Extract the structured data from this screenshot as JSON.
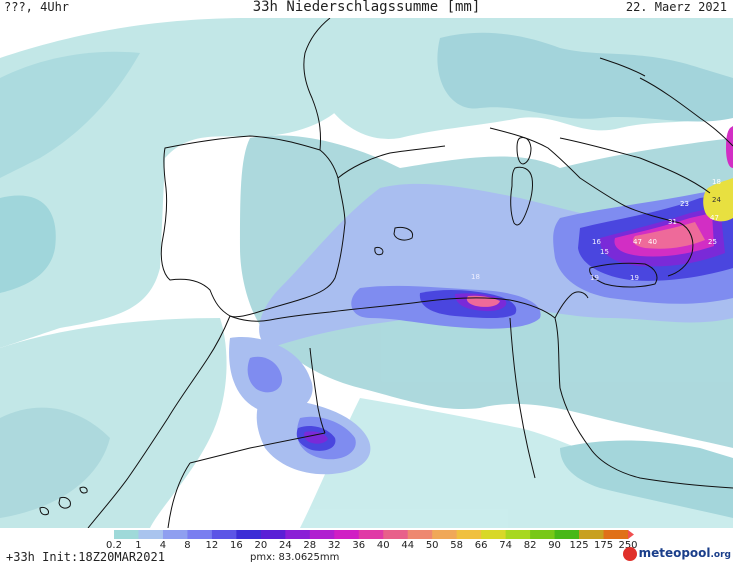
{
  "header": {
    "left": "???, 4Uhr",
    "title": "33h Niederschlagssumme [mm]",
    "date": "22. Maerz 2021"
  },
  "footer": {
    "forecast": "+33h Init:18Z20MAR2021",
    "pmx": "pmx: 83.0625mm",
    "logo": "meteopool",
    "logo_suffix": ".org"
  },
  "colorbar": {
    "labels": [
      "0.2",
      "1",
      "4",
      "8",
      "12",
      "16",
      "20",
      "24",
      "28",
      "32",
      "36",
      "40",
      "44",
      "50",
      "58",
      "66",
      "74",
      "82",
      "90",
      "125",
      "175",
      "250"
    ],
    "colors": [
      "#9fd9d9",
      "#a9c4ee",
      "#8f9ff0",
      "#7a7ef0",
      "#5c55e6",
      "#3c2ed6",
      "#5a1fd6",
      "#8a1fd6",
      "#b01fd0",
      "#d01fc4",
      "#e03aa6",
      "#e8608a",
      "#ee8870",
      "#f0a858",
      "#f0c040",
      "#d8d828",
      "#a8d820",
      "#78c818",
      "#48b818",
      "#c8a020",
      "#e07018",
      "#f05050"
    ],
    "bar_colors_note_hidden": ""
  },
  "map_labels": [
    {
      "text": "18",
      "kind": "value"
    },
    {
      "text": "16",
      "kind": "value"
    },
    {
      "text": "47",
      "kind": "value"
    },
    {
      "text": "40",
      "kind": "value"
    },
    {
      "text": "25",
      "kind": "value"
    },
    {
      "text": "19",
      "kind": "value"
    },
    {
      "text": "19",
      "kind": "value"
    },
    {
      "text": "15",
      "kind": "value"
    },
    {
      "text": "31",
      "kind": "value"
    },
    {
      "text": "23",
      "kind": "value"
    },
    {
      "text": "24",
      "kind": "value"
    },
    {
      "text": "47",
      "kind": "value"
    },
    {
      "text": "18",
      "kind": "value"
    }
  ],
  "palette": {
    "light": "#bfe6e6",
    "cyan": "#96d2d8",
    "teal": "#86c4d0",
    "lightblue": "#a9bef0",
    "blue": "#7f8cf0",
    "darkblue": "#4a46df",
    "violet": "#7a2ad8",
    "magenta": "#d22ec4",
    "pink": "#ee6a9a",
    "yellow": "#e8e040",
    "coast": "#111111",
    "land": "#ffffff"
  }
}
